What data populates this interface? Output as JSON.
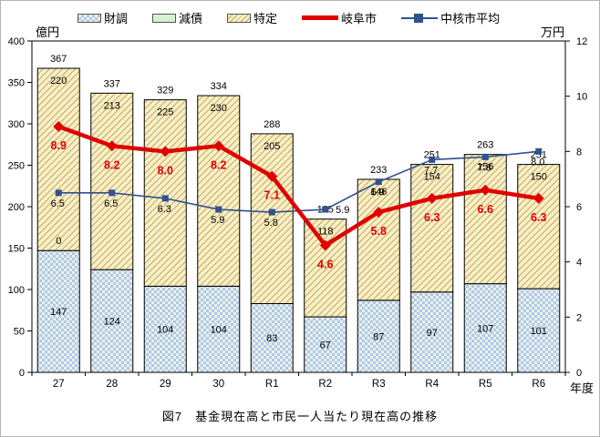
{
  "figure": {
    "caption": "図7　基金現在高と市民一人当たり現在高の推移",
    "left_axis_unit": "億円",
    "right_axis_unit": "万円",
    "x_axis_unit": "年度"
  },
  "legend": {
    "items": [
      {
        "label": "財調",
        "swatch": "blue-check-pattern",
        "color": "#b3c6ee"
      },
      {
        "label": "減債",
        "swatch": "green-solid",
        "color": "#d9f0d2"
      },
      {
        "label": "特定",
        "swatch": "yellow-hatch-pattern",
        "color": "#f8f1c6"
      },
      {
        "label": "岐阜市",
        "swatch": "red-thick-line",
        "color": "#e00000"
      },
      {
        "label": "中核市平均",
        "swatch": "blue-line-square-marker",
        "color": "#31518f"
      }
    ]
  },
  "chart_data": {
    "type": "bar",
    "subtype": "stacked-bars-with-two-lines",
    "categories": [
      "27",
      "28",
      "29",
      "30",
      "R1",
      "R2",
      "R3",
      "R4",
      "R5",
      "R6"
    ],
    "bar_series": [
      {
        "name": "財調",
        "axis": "left",
        "fill": "blue-check-pattern",
        "values": [
          147,
          124,
          104,
          104,
          83,
          67,
          87,
          97,
          107,
          101
        ]
      },
      {
        "name": "減債",
        "axis": "left",
        "fill": "green-solid",
        "values": [
          0,
          0,
          0,
          0,
          0,
          0,
          0,
          0,
          0,
          0
        ]
      },
      {
        "name": "特定",
        "axis": "left",
        "fill": "yellow-hatch-pattern",
        "values": [
          220,
          213,
          225,
          230,
          205,
          118,
          146,
          154,
          156,
          150
        ]
      }
    ],
    "bar_totals": [
      367,
      337,
      329,
      334,
      288,
      185,
      233,
      251,
      263,
      251
    ],
    "line_series": [
      {
        "name": "中核市平均",
        "axis": "right",
        "color": "#31518f",
        "marker": "square",
        "values": [
          6.5,
          6.5,
          6.3,
          5.9,
          5.8,
          5.9,
          6.9,
          7.7,
          7.8,
          8.0
        ]
      },
      {
        "name": "岐阜市",
        "axis": "right",
        "color": "#e00000",
        "marker": "diamond",
        "values": [
          8.9,
          8.2,
          8.0,
          8.2,
          7.1,
          4.6,
          5.8,
          6.3,
          6.6,
          6.3
        ]
      }
    ],
    "left_axis": {
      "label": "億円",
      "min": 0,
      "max": 400,
      "step": 50
    },
    "right_axis": {
      "label": "万円",
      "min": 0,
      "max": 12,
      "step": 2
    },
    "x_axis_label": "年度",
    "zero_segment_label": {
      "category": "27",
      "series": "減債",
      "value": "0"
    },
    "grid": false,
    "legend_position": "top"
  }
}
